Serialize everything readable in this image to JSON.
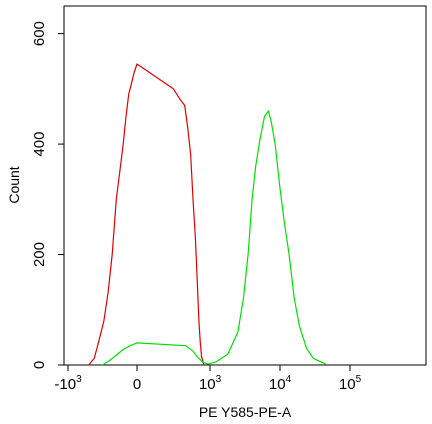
{
  "chart_data": {
    "type": "line",
    "title": "",
    "xlabel": "PE Y585-PE-A",
    "ylabel": "Count",
    "x_scale": "biexponential",
    "xlim": [
      -1000,
      100000
    ],
    "ylim": [
      0,
      650
    ],
    "x_ticks": [
      {
        "value": -1000,
        "base": "-10",
        "exp": "3"
      },
      {
        "value": 0,
        "base": "0",
        "exp": ""
      },
      {
        "value": 1000,
        "base": "10",
        "exp": "3"
      },
      {
        "value": 10000,
        "base": "10",
        "exp": "4"
      },
      {
        "value": 100000,
        "base": "10",
        "exp": "5"
      }
    ],
    "y_ticks": [
      0,
      200,
      400,
      600
    ],
    "grid": false,
    "colors": {
      "series_red": "#e00000",
      "series_green": "#00e000",
      "axis": "#000000"
    },
    "series": [
      {
        "color": "#e00000",
        "points": [
          [
            -700,
            0
          ],
          [
            -620,
            12
          ],
          [
            -560,
            40
          ],
          [
            -480,
            80
          ],
          [
            -420,
            130
          ],
          [
            -360,
            200
          ],
          [
            -300,
            300
          ],
          [
            -250,
            350
          ],
          [
            -200,
            400
          ],
          [
            -160,
            450
          ],
          [
            -120,
            490
          ],
          [
            -80,
            510
          ],
          [
            -40,
            530
          ],
          [
            0,
            545
          ],
          [
            30,
            500
          ],
          [
            60,
            480
          ],
          [
            90,
            470
          ],
          [
            120,
            430
          ],
          [
            160,
            380
          ],
          [
            200,
            300
          ],
          [
            250,
            230
          ],
          [
            300,
            150
          ],
          [
            350,
            80
          ],
          [
            400,
            40
          ],
          [
            450,
            15
          ],
          [
            500,
            8
          ],
          [
            560,
            0
          ]
        ]
      },
      {
        "color": "#00e000",
        "points": [
          [
            -500,
            0
          ],
          [
            -400,
            8
          ],
          [
            -300,
            18
          ],
          [
            -200,
            28
          ],
          [
            -100,
            35
          ],
          [
            0,
            40
          ],
          [
            100,
            35
          ],
          [
            200,
            25
          ],
          [
            300,
            15
          ],
          [
            500,
            5
          ],
          [
            800,
            2
          ],
          [
            1200,
            5
          ],
          [
            1800,
            20
          ],
          [
            2500,
            60
          ],
          [
            3000,
            120
          ],
          [
            3500,
            200
          ],
          [
            4000,
            300
          ],
          [
            4500,
            360
          ],
          [
            5200,
            410
          ],
          [
            6000,
            450
          ],
          [
            6800,
            460
          ],
          [
            7500,
            440
          ],
          [
            8500,
            400
          ],
          [
            10000,
            320
          ],
          [
            11500,
            260
          ],
          [
            13500,
            200
          ],
          [
            16000,
            120
          ],
          [
            19000,
            70
          ],
          [
            24000,
            30
          ],
          [
            30000,
            12
          ],
          [
            38000,
            6
          ],
          [
            45000,
            2
          ]
        ]
      }
    ]
  }
}
